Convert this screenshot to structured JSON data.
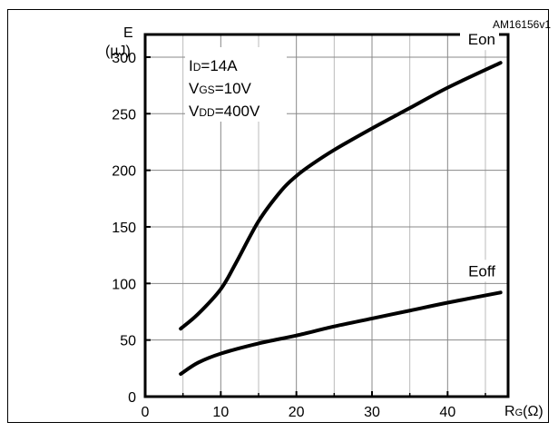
{
  "chart_data": {
    "type": "line",
    "watermark": "AM16156v1",
    "ylabel_top": "E",
    "ylabel_unit": "(µJ)",
    "xlabel_main": "R",
    "xlabel_sub": "G",
    "xlabel_unit": "(Ω)",
    "xlim": [
      0,
      48
    ],
    "ylim": [
      0,
      320
    ],
    "xticks": [
      0,
      10,
      20,
      30,
      40
    ],
    "yticks": [
      0,
      50,
      100,
      150,
      200,
      250,
      300
    ],
    "grid": true,
    "conditions": [
      {
        "main": "I",
        "sub": "D",
        "rest": "=14A"
      },
      {
        "main": "V",
        "sub": "GS",
        "rest": "=10V"
      },
      {
        "main": "V",
        "sub": "DD",
        "rest": "=400V"
      }
    ],
    "series": [
      {
        "name": "Eon",
        "x": [
          4.7,
          7,
          10,
          12,
          15,
          18,
          20,
          22,
          25,
          30,
          35,
          40,
          47
        ],
        "y": [
          60,
          73,
          95,
          118,
          155,
          182,
          195,
          205,
          218,
          237,
          255,
          273,
          295
        ]
      },
      {
        "name": "Eoff",
        "x": [
          4.7,
          7,
          10,
          15,
          20,
          25,
          30,
          35,
          40,
          47
        ],
        "y": [
          20,
          30,
          38,
          47,
          54,
          62,
          69,
          76,
          83,
          92
        ]
      }
    ],
    "series_label_positions": [
      "top-right",
      "mid-right"
    ]
  }
}
